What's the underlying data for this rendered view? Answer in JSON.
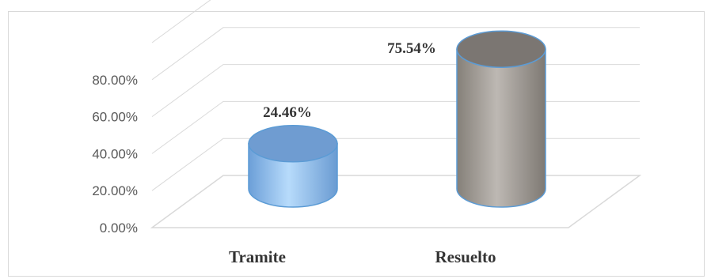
{
  "chart_data": {
    "type": "bar",
    "style": "3d-cylinder",
    "categories": [
      "Tramite",
      "Resuelto"
    ],
    "values": [
      24.46,
      75.54
    ],
    "data_labels": [
      "24.46%",
      "75.54%"
    ],
    "ytick_labels": [
      "0.00%",
      "20.00%",
      "40.00%",
      "60.00%",
      "80.00%"
    ],
    "ytick_values": [
      0,
      20,
      40,
      60,
      80
    ],
    "ylim": [
      0,
      100
    ],
    "grid": true,
    "legend": "none",
    "colors": {
      "Tramite": "#8fb9e8",
      "Resuelto": "#a6a19c",
      "outline": "#5b9bd5",
      "grid": "#d9d9d9"
    }
  }
}
